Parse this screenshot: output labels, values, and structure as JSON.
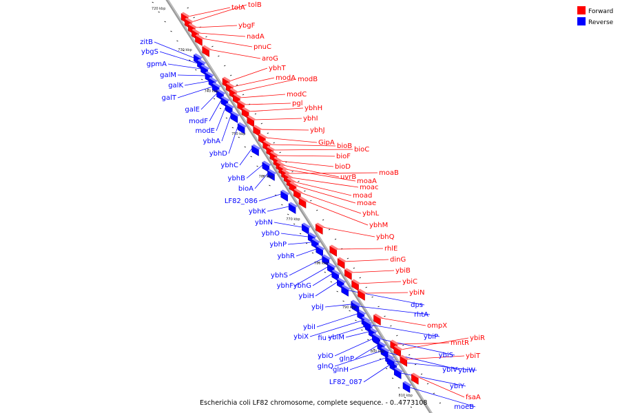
{
  "title": "Escherichia coli LF82 chromosome, complete sequence. - 0..4773108",
  "colors": {
    "forward": "#ff0000",
    "reverse": "#0000ff",
    "backbone": "#9a9a9a"
  },
  "legend": [
    {
      "label": "Forward",
      "color": "#ff0000"
    },
    {
      "label": "Reverse",
      "color": "#0000ff"
    }
  ],
  "kbp_ticks": [
    "720 kbp",
    "730 kbp",
    "740 kbp",
    "750 kbp",
    "760 kbp",
    "770 kbp",
    "780 kbp",
    "790 kbp",
    "800 kbp",
    "810 kbp"
  ],
  "forward_genes": [
    "tolA",
    "tolB",
    "ybgF",
    "nadA",
    "pnuC",
    "aroG",
    "ybhT",
    "modA",
    "modB",
    "modC",
    "pgl",
    "ybhH",
    "ybhI",
    "ybhJ",
    "GipA",
    "bioB",
    "bioC",
    "bioF",
    "bioD",
    "uvrB",
    "moaA",
    "moaB",
    "moac",
    "moad",
    "moae",
    "ybhL",
    "ybhM",
    "ybhQ",
    "rhlE",
    "dinG",
    "ybiB",
    "ybiC",
    "ybiN",
    "ompX",
    "mntR",
    "ybiR",
    "ybiT",
    "fsaA"
  ],
  "reverse_genes": [
    "zitB",
    "ybgS",
    "gpmA",
    "galM",
    "galK",
    "galT",
    "galE",
    "modF",
    "modE",
    "ybhA",
    "ybhD",
    "ybhC",
    "ybhB",
    "bioA",
    "LF82_086",
    "ybhK",
    "ybhN",
    "ybhO",
    "ybhP",
    "ybhR",
    "ybhS",
    "ybhF",
    "ybhG",
    "ybiH",
    "ybiJ",
    "ybiI",
    "ybiX",
    "fiu",
    "ybiM",
    "ybiO",
    "glnP",
    "glnQ",
    "glnH",
    "LF82_087",
    "dps",
    "rhtA",
    "ybiP",
    "ybiS",
    "ybiV",
    "ybiW",
    "ybiY",
    "moeB"
  ]
}
